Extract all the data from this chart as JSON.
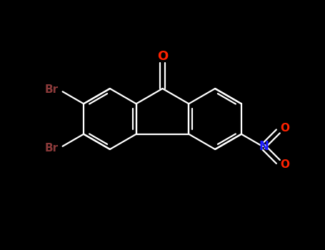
{
  "bg_color": "#000000",
  "bond_color": "#ffffff",
  "carbonyl_O_color": "#ff2200",
  "nitro_N_color": "#1a1aff",
  "nitro_O_color": "#ff2200",
  "br_color": "#8b3a3a",
  "bond_width": 1.6,
  "font_size_br": 11,
  "font_size_no2": 11,
  "figsize": [
    4.55,
    3.5
  ],
  "dpi": 100,
  "xlim": [
    0,
    9.1
  ],
  "ylim": [
    0,
    7.0
  ]
}
